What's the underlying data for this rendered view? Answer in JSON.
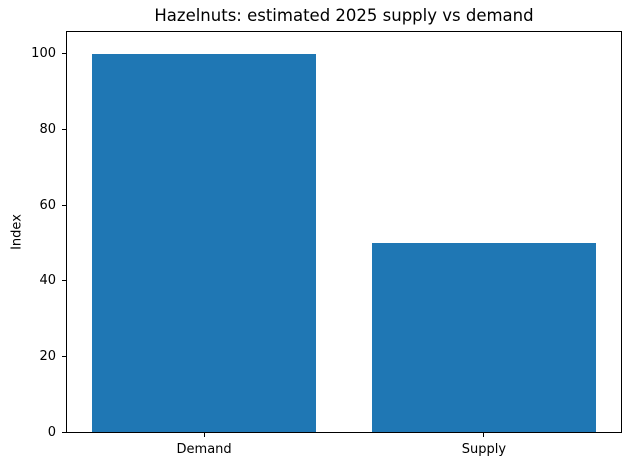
{
  "figure": {
    "background": "#ffffff",
    "spine_color": "#000000",
    "text_color": "#000000"
  },
  "chart_data": {
    "type": "bar",
    "title": "Hazelnuts: estimated 2025 supply vs demand",
    "categories": [
      "Demand",
      "Supply"
    ],
    "values": [
      100,
      50
    ],
    "xlabel": "",
    "ylabel": "Index",
    "ylim": [
      0,
      105.8
    ],
    "yticks": [
      0,
      20,
      40,
      60,
      80,
      100
    ],
    "bar_color": "#1f77b4",
    "grid": false,
    "legend": false
  }
}
